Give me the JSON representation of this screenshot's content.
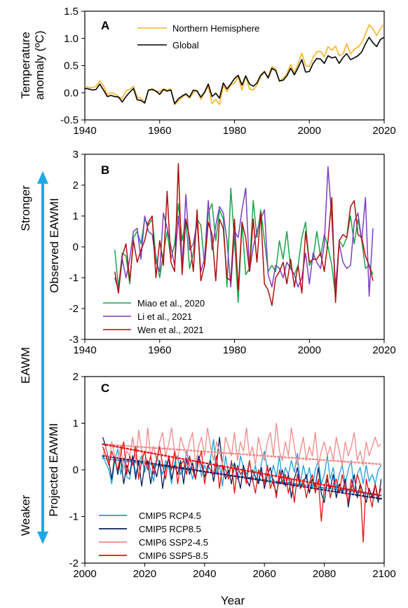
{
  "colors": {
    "nh": "#f5b324",
    "global": "#000000",
    "miao": "#1aa34a",
    "li": "#7b3fbf",
    "wen": "#b00d0d",
    "cmip5_45": "#19a0e0",
    "cmip5_85": "#0b1f5e",
    "cmip6_245": "#f08a8a",
    "cmip6_585": "#e81111",
    "arrow": "#1ea8e6"
  },
  "side": {
    "stronger": "Stronger",
    "eawm": "EAWM",
    "weaker": "Weaker"
  },
  "chart_data": [
    {
      "type": "line",
      "panel_label": "A",
      "ylabel": "Temperature anomaly (ºC)",
      "ylabel_lines": [
        "Temperature",
        "anomaly (ºC)"
      ],
      "xlabel": "",
      "xlim": [
        1940,
        2020
      ],
      "ylim": [
        -0.5,
        1.5
      ],
      "xticks": [
        "1940",
        "1960",
        "1980",
        "2000",
        "2020"
      ],
      "yticks": [
        "-0.5",
        "0.0",
        "0.5",
        "1.0",
        "1.5"
      ],
      "legend_position": "top-right",
      "x": [
        1940,
        1941,
        1942,
        1943,
        1944,
        1945,
        1946,
        1947,
        1948,
        1949,
        1950,
        1951,
        1952,
        1953,
        1954,
        1955,
        1956,
        1957,
        1958,
        1959,
        1960,
        1961,
        1962,
        1963,
        1964,
        1965,
        1966,
        1967,
        1968,
        1969,
        1970,
        1971,
        1972,
        1973,
        1974,
        1975,
        1976,
        1977,
        1978,
        1979,
        1980,
        1981,
        1982,
        1983,
        1984,
        1985,
        1986,
        1987,
        1988,
        1989,
        1990,
        1991,
        1992,
        1993,
        1994,
        1995,
        1996,
        1997,
        1998,
        1999,
        2000,
        2001,
        2002,
        2003,
        2004,
        2005,
        2006,
        2007,
        2008,
        2009,
        2010,
        2011,
        2012,
        2013,
        2014,
        2015,
        2016,
        2017,
        2018,
        2019,
        2020
      ],
      "series": [
        {
          "name": "Northern Hemisphere",
          "color_key": "nh",
          "values": [
            0.12,
            0.1,
            0.09,
            0.12,
            0.22,
            0.13,
            -0.03,
            0.0,
            -0.02,
            -0.07,
            -0.11,
            0.04,
            0.06,
            0.12,
            -0.08,
            -0.1,
            -0.17,
            0.04,
            0.08,
            0.03,
            0.02,
            0.07,
            0.05,
            0.07,
            -0.22,
            -0.15,
            -0.08,
            -0.04,
            -0.1,
            0.0,
            0.05,
            -0.12,
            0.0,
            0.12,
            -0.2,
            -0.12,
            -0.22,
            0.13,
            0.02,
            0.14,
            0.18,
            0.29,
            0.05,
            0.3,
            0.07,
            0.05,
            0.14,
            0.3,
            0.37,
            0.3,
            0.48,
            0.44,
            0.2,
            0.27,
            0.35,
            0.52,
            0.36,
            0.53,
            0.73,
            0.5,
            0.48,
            0.65,
            0.75,
            0.76,
            0.66,
            0.85,
            0.78,
            0.86,
            0.68,
            0.71,
            0.9,
            0.71,
            0.8,
            0.84,
            0.92,
            1.08,
            1.25,
            1.18,
            1.05,
            1.18,
            1.27
          ]
        },
        {
          "name": "Global",
          "color_key": "global",
          "values": [
            0.08,
            0.07,
            0.05,
            0.06,
            0.16,
            0.05,
            -0.07,
            -0.05,
            -0.07,
            -0.08,
            -0.17,
            -0.07,
            0.01,
            0.08,
            -0.13,
            -0.14,
            -0.19,
            0.05,
            0.06,
            0.03,
            -0.03,
            0.06,
            0.03,
            0.05,
            -0.2,
            -0.11,
            -0.06,
            -0.02,
            -0.08,
            0.05,
            0.03,
            -0.08,
            0.01,
            0.16,
            -0.07,
            -0.01,
            -0.1,
            0.18,
            0.07,
            0.16,
            0.26,
            0.32,
            0.14,
            0.31,
            0.16,
            0.12,
            0.18,
            0.32,
            0.39,
            0.27,
            0.45,
            0.41,
            0.22,
            0.23,
            0.31,
            0.45,
            0.33,
            0.46,
            0.61,
            0.38,
            0.39,
            0.54,
            0.63,
            0.62,
            0.54,
            0.68,
            0.64,
            0.66,
            0.54,
            0.65,
            0.72,
            0.61,
            0.64,
            0.68,
            0.75,
            0.9,
            1.02,
            0.92,
            0.85,
            0.98,
            1.02
          ]
        }
      ]
    },
    {
      "type": "line",
      "panel_label": "B",
      "ylabel": "Observed EAWMI",
      "xlabel": "",
      "xlim": [
        1940,
        2020
      ],
      "ylim": [
        -3,
        3
      ],
      "xticks": [
        "1940",
        "1960",
        "1980",
        "2000",
        "2020"
      ],
      "yticks": [
        "-3",
        "-2",
        "-1",
        "0",
        "1",
        "2",
        "3"
      ],
      "legend_position": "bottom-left",
      "x": [
        1948,
        1949,
        1950,
        1951,
        1952,
        1953,
        1954,
        1955,
        1956,
        1957,
        1958,
        1959,
        1960,
        1961,
        1962,
        1963,
        1964,
        1965,
        1966,
        1967,
        1968,
        1969,
        1970,
        1971,
        1972,
        1973,
        1974,
        1975,
        1976,
        1977,
        1978,
        1979,
        1980,
        1981,
        1982,
        1983,
        1984,
        1985,
        1986,
        1987,
        1988,
        1989,
        1990,
        1991,
        1992,
        1993,
        1994,
        1995,
        1996,
        1997,
        1998,
        1999,
        2000,
        2001,
        2002,
        2003,
        2004,
        2005,
        2006,
        2007,
        2008,
        2009,
        2010,
        2011,
        2012,
        2013,
        2014,
        2015,
        2016,
        2017
      ],
      "series": [
        {
          "name": "Miao et al., 2020",
          "color_key": "miao",
          "values": [
            -0.1,
            -1.3,
            -0.2,
            -0.3,
            -1.2,
            0.3,
            0.5,
            0.1,
            0.9,
            0.7,
            0.9,
            -0.3,
            -1.0,
            -0.2,
            0.5,
            -0.4,
            0.1,
            1.4,
            0.2,
            0.9,
            -0.7,
            -0.2,
            0.9,
            0.7,
            -0.6,
            1.1,
            1.4,
            0.2,
            1.2,
            0.9,
            -1.3,
            1.9,
            0.2,
            -1.8,
            0.8,
            -0.9,
            -0.7,
            1.5,
            0.3,
            1.2,
            0.2,
            -0.8,
            -0.6,
            -0.8,
            0.2,
            -0.4,
            0.5,
            -0.7,
            -0.9,
            -0.6,
            0.3,
            0.8,
            -0.6,
            -0.4,
            0.5,
            -0.3,
            0.4,
            0.0,
            -0.6,
            -1.6,
            0.2,
            0.0,
            0.3,
            1.0,
            0.1,
            0.9,
            0.2,
            -0.7,
            -0.6,
            -0.9
          ]
        },
        {
          "name": "Li et al., 2021",
          "color_key": "li",
          "values": [
            -1.0,
            -1.4,
            -0.4,
            -1.0,
            -0.4,
            0.5,
            0.6,
            -0.4,
            1.0,
            0.5,
            0.4,
            -0.5,
            -0.8,
            1.1,
            0.6,
            0.0,
            -0.6,
            1.0,
            -0.7,
            1.7,
            -0.1,
            0.1,
            0.8,
            -0.8,
            -0.4,
            1.5,
            -0.1,
            0.7,
            1.3,
            1.1,
            0.2,
            -1.3,
            0.5,
            0.3,
            1.2,
            1.9,
            -0.8,
            0.0,
            0.5,
            0.9,
            1.2,
            -0.9,
            -1.3,
            -0.6,
            -0.7,
            -1.0,
            -0.5,
            -0.7,
            -0.9,
            -1.3,
            -1.0,
            -0.2,
            -1.2,
            -0.2,
            -0.5,
            -0.7,
            0.1,
            2.6,
            0.9,
            -1.3,
            0.1,
            -0.5,
            -0.7,
            -0.6,
            0.8,
            1.1,
            0.2,
            1.6,
            -1.6,
            0.6
          ]
        },
        {
          "name": "Wen et al., 2021",
          "color_key": "wen",
          "values": [
            -0.8,
            -1.5,
            -0.3,
            0.1,
            -1.1,
            0.2,
            -0.5,
            -0.1,
            0.2,
            0.8,
            1.0,
            -1.0,
            0.2,
            -0.6,
            1.8,
            -0.5,
            -0.8,
            2.7,
            -0.9,
            0.9,
            0.3,
            -0.8,
            1.2,
            -1.1,
            -0.6,
            0.8,
            0.4,
            -1.1,
            0.9,
            0.6,
            -1.0,
            -1.1,
            0.9,
            -1.4,
            0.8,
            0.3,
            -0.8,
            0.9,
            -0.5,
            1.1,
            -1.2,
            -1.4,
            -1.9,
            -1.0,
            -0.8,
            -0.5,
            -1.2,
            -0.4,
            -1.3,
            -0.6,
            -1.5,
            0.5,
            -0.5,
            -0.4,
            -0.4,
            -0.2,
            -0.8,
            0.2,
            1.6,
            -1.8,
            0.2,
            0.4,
            0.3,
            1.3,
            1.5,
            0.4,
            0.3,
            -0.3,
            -0.6,
            -1.1
          ]
        }
      ]
    },
    {
      "type": "line",
      "panel_label": "C",
      "ylabel": "Projected EAWMI",
      "xlabel": "Year",
      "xlim": [
        2000,
        2100
      ],
      "ylim": [
        -2,
        2
      ],
      "xticks": [
        "2000",
        "2020",
        "2040",
        "2060",
        "2080",
        "2100"
      ],
      "yticks": [
        "-2",
        "-1",
        "0",
        "1",
        "2"
      ],
      "legend_position": "bottom-left",
      "x_start": 2006,
      "x_end": 2099,
      "series": [
        {
          "name": "CMIP5 RCP4.5",
          "color_key": "cmip5_45",
          "trend": [
            0.25,
            -0.55
          ],
          "values": [
            0.3,
            0.15,
            0.0,
            -0.3,
            0.2,
            0.45,
            -0.1,
            0.25,
            -0.15,
            -0.2,
            0.3,
            -0.1,
            0.15,
            0.3,
            -0.05,
            0.2,
            0.0,
            -0.25,
            0.3,
            0.1,
            -0.1,
            0.2,
            0.05,
            -0.3,
            0.15,
            0.3,
            -0.1,
            0.0,
            0.4,
            0.1,
            -0.2,
            0.05,
            0.3,
            -0.15,
            0.1,
            -0.05,
            0.25,
            0.65,
            -0.1,
            0.1,
            -0.35,
            0.3,
            -0.1,
            0.15,
            0.05,
            -0.2,
            0.3,
            0.05,
            -0.1,
            0.2,
            -0.25,
            0.1,
            -0.3,
            0.15,
            0.4,
            0.0,
            -0.2,
            0.1,
            -0.15,
            0.3,
            -0.3,
            0.05,
            -0.1,
            0.2,
            -0.05,
            0.35,
            -0.3,
            0.1,
            -0.2,
            0.05,
            -0.4,
            0.0,
            0.2,
            -0.3,
            -0.1,
            0.3,
            -0.2,
            0.05,
            -0.4,
            -0.1,
            0.1,
            -0.3,
            0.0,
            0.2,
            -0.5,
            -0.1,
            0.05,
            -0.3,
            0.1,
            -0.25,
            -0.1,
            -0.3,
            0.0,
            0.1
          ]
        },
        {
          "name": "CMIP5 RCP8.5",
          "color_key": "cmip5_85",
          "trend": [
            0.3,
            -0.62
          ],
          "values": [
            0.7,
            0.5,
            0.2,
            -0.2,
            0.3,
            -0.1,
            0.25,
            -0.3,
            0.1,
            -0.1,
            0.3,
            -0.2,
            0.2,
            -0.35,
            0.1,
            0.2,
            -0.3,
            0.1,
            -0.15,
            0.2,
            -0.4,
            0.05,
            0.25,
            -0.2,
            0.1,
            -0.1,
            0.2,
            -0.3,
            0.25,
            -0.1,
            0.15,
            -0.2,
            0.3,
            0.1,
            -0.15,
            0.05,
            0.2,
            -0.25,
            0.1,
            0.7,
            0.1,
            -0.2,
            0.0,
            -0.3,
            0.15,
            -0.1,
            -0.4,
            0.1,
            -0.2,
            -0.35,
            0.0,
            -0.15,
            -0.3,
            0.05,
            -0.4,
            -0.1,
            0.05,
            -0.3,
            -0.5,
            -0.2,
            0.0,
            -0.35,
            -0.1,
            -0.6,
            -0.2,
            0.05,
            -0.4,
            -0.3,
            -0.1,
            -0.5,
            -0.2,
            -0.35,
            0.05,
            -0.5,
            -0.7,
            -0.2,
            -0.4,
            -0.1,
            -0.6,
            -0.3,
            -0.5,
            -0.2,
            -0.8,
            -0.4,
            -0.1,
            -0.6,
            -0.3,
            -0.5,
            -0.7,
            -0.4,
            -0.6,
            -0.3,
            -0.7,
            -0.2
          ]
        },
        {
          "name": "CMIP6 SSP2-4.5",
          "color_key": "cmip6_245",
          "trend": [
            0.55,
            0.12
          ],
          "values": [
            0.3,
            0.5,
            0.1,
            0.6,
            0.3,
            0.2,
            0.5,
            0.0,
            0.4,
            0.3,
            0.7,
            0.2,
            0.85,
            0.4,
            0.1,
            0.9,
            0.3,
            0.5,
            0.2,
            0.6,
            0.8,
            0.3,
            0.55,
            0.9,
            0.4,
            0.2,
            0.7,
            0.5,
            0.3,
            0.6,
            0.8,
            0.1,
            0.5,
            0.7,
            0.3,
            0.9,
            0.5,
            0.2,
            0.6,
            0.4,
            0.1,
            0.7,
            0.5,
            0.3,
            0.8,
            0.2,
            0.6,
            0.4,
            0.9,
            0.3,
            0.5,
            0.1,
            0.7,
            0.4,
            0.2,
            0.6,
            0.8,
            0.3,
            1.0,
            0.4,
            0.2,
            0.6,
            0.3,
            0.9,
            0.5,
            0.1,
            0.4,
            0.7,
            0.2,
            0.5,
            0.3,
            0.8,
            0.1,
            0.4,
            0.6,
            0.3,
            0.5,
            0.2,
            0.7,
            0.4,
            0.1,
            0.6,
            0.3,
            0.5,
            0.8,
            0.2,
            0.4,
            0.1,
            0.6,
            0.3,
            0.5,
            0.7,
            0.5,
            0.55
          ]
        },
        {
          "name": "CMIP6 SSP5-8.5",
          "color_key": "cmip6_585",
          "trend": [
            0.55,
            -0.55
          ],
          "values": [
            0.5,
            0.3,
            0.1,
            0.4,
            0.2,
            0.0,
            0.35,
            0.6,
            -0.1,
            0.3,
            0.1,
            0.5,
            -0.2,
            0.2,
            0.4,
            0.0,
            0.3,
            -0.1,
            0.2,
            0.5,
            0.1,
            -0.2,
            0.3,
            0.0,
            0.4,
            -0.3,
            0.1,
            0.2,
            -0.1,
            0.3,
            0.0,
            -0.2,
            0.2,
            0.4,
            -0.3,
            0.1,
            0.0,
            -0.1,
            0.3,
            -0.4,
            0.1,
            0.0,
            -0.2,
            0.2,
            -0.5,
            0.1,
            -0.1,
            0.0,
            -0.3,
            0.2,
            -0.2,
            -0.5,
            0.0,
            -0.1,
            -0.3,
            0.1,
            -0.4,
            -0.2,
            -0.6,
            0.0,
            -0.3,
            -0.1,
            -0.5,
            -0.2,
            -0.7,
            -0.1,
            -0.4,
            -0.2,
            -0.6,
            -0.3,
            -0.1,
            -0.5,
            -0.2,
            -1.1,
            -0.4,
            -0.1,
            -0.6,
            -0.3,
            -0.2,
            -0.5,
            -0.1,
            -0.4,
            -0.7,
            -0.2,
            -0.5,
            -0.1,
            -0.3,
            -1.55,
            -0.2,
            -0.5,
            -0.8,
            -0.3,
            -0.6,
            -0.4
          ]
        }
      ]
    }
  ]
}
